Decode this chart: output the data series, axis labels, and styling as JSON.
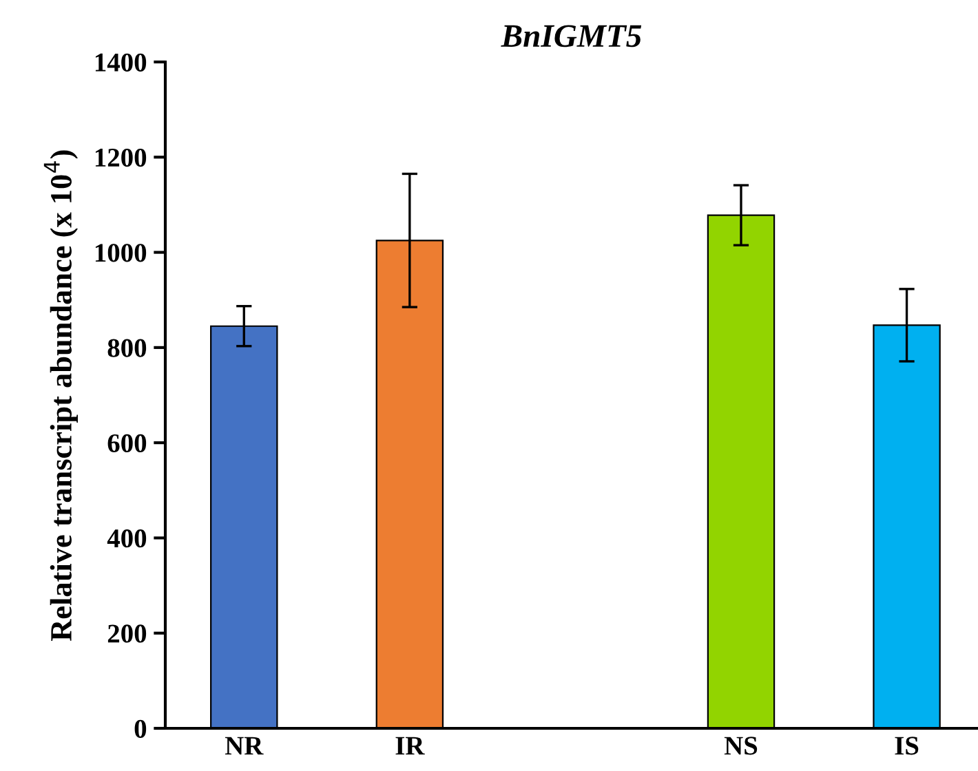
{
  "chart_data": {
    "type": "bar",
    "title": "BnIGMT5",
    "ylabel": "Relative transcript abundance (x 10$^{4}$)",
    "categories": [
      "NR",
      "IR",
      null,
      "NS",
      "IS"
    ],
    "values": [
      845,
      1025,
      null,
      1078,
      847
    ],
    "colors": [
      "#4472c4",
      "#ed7d31",
      "#ffffff",
      "#92d400",
      "#00b0f0"
    ],
    "errors": [
      42,
      140,
      null,
      63,
      76
    ],
    "ylim": [
      0,
      1400
    ],
    "yticks": [
      0,
      200,
      400,
      600,
      800,
      1000,
      1200,
      1400
    ],
    "grid": false
  }
}
